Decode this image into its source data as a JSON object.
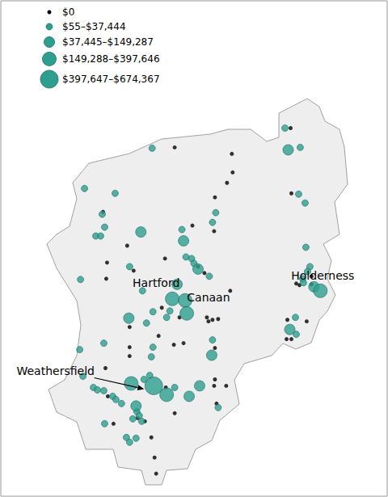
{
  "chart_data": {
    "type": "scatter",
    "marker": "circle",
    "xlim": [
      -73.4,
      -71.0
    ],
    "ylim": [
      43.0625,
      44.6
    ],
    "tick_labels": false,
    "grid": false,
    "legend": "upper left",
    "series": [
      {
        "name": "$0",
        "color": "#000000",
        "range": [
          0,
          0
        ],
        "x": [
          -71.6,
          -72.32,
          -71.965,
          -71.96,
          -71.995,
          -72.07,
          -72.075,
          -71.595,
          -72.765,
          -72.21,
          -72.615,
          -72.175,
          -72.135,
          -72.74,
          -72.575,
          -72.38,
          -72.745,
          -72.4,
          -72.29,
          -72.12,
          -72.085,
          -72.05,
          -72.11,
          -71.975,
          -71.47,
          -71.565,
          -71.545,
          -71.47,
          -71.62,
          -71.625,
          -71.5,
          -72.6,
          -72.6,
          -72.42,
          -72.325,
          -72.265,
          -72.07,
          -72.75,
          -72.735,
          -72.375,
          -72.07,
          -72.075,
          -72.06,
          -72.0,
          -72.7,
          -72.465,
          -72.32,
          -72.445,
          -72.435,
          -72.505,
          -72.55,
          -72.6,
          -71.595
        ],
        "y": [
          44.205,
          44.145,
          44.125,
          44.0675,
          44.035,
          43.99,
          43.885,
          44.0025,
          43.945,
          43.9025,
          43.84,
          43.775,
          43.755,
          43.7875,
          43.7625,
          43.8,
          43.7375,
          43.6475,
          43.6175,
          43.6175,
          43.61,
          43.6125,
          43.605,
          43.7,
          43.745,
          43.7225,
          43.7175,
          43.72,
          43.61,
          43.55,
          43.605,
          43.525,
          43.4975,
          43.56,
          43.5325,
          43.5375,
          43.5225,
          43.46,
          43.3725,
          43.4,
          43.425,
          43.405,
          43.35,
          43.405,
          43.2875,
          43.245,
          43.32,
          43.1825,
          43.1325,
          43.295,
          43.305,
          43.5875,
          43.55
        ]
      },
      {
        "name": "$55–$37,444",
        "color": "#2e9e8f",
        "range": [
          55,
          37444
        ],
        "x": [
          -71.635,
          -71.54,
          -71.55,
          -71.51,
          -72.46,
          -72.065,
          -72.085,
          -72.88,
          -72.69,
          -72.77,
          -72.81,
          -72.78,
          -72.755,
          -72.275,
          -72.25,
          -72.215,
          -72.2,
          -72.105,
          -72.6,
          -72.905,
          -72.52,
          -72.495,
          -72.455,
          -72.37,
          -72.35,
          -71.505,
          -71.48,
          -71.495,
          -71.525,
          -71.52,
          -71.565,
          -71.57,
          -72.91,
          -72.76,
          -72.455,
          -72.465,
          -72.085,
          -72.89,
          -72.825,
          -72.8,
          -72.76,
          -72.705,
          -72.685,
          -72.51,
          -72.475,
          -72.32,
          -72.05,
          -72.555,
          -72.54,
          -72.58,
          -72.525,
          -72.65,
          -72.755,
          -72.62,
          -72.56,
          -72.6
        ],
        "y": [
          44.205,
          44.145,
          44.0,
          43.9725,
          44.1425,
          43.9425,
          43.9125,
          44.0175,
          44.0025,
          43.9375,
          43.87,
          43.87,
          43.8975,
          43.89,
          43.805,
          43.8,
          43.785,
          43.745,
          43.775,
          43.735,
          43.7,
          43.6,
          43.635,
          43.6175,
          43.6375,
          43.835,
          43.775,
          43.76,
          43.7375,
          43.725,
          43.565,
          43.6175,
          43.5175,
          43.5375,
          43.525,
          43.495,
          43.5475,
          43.435,
          43.4,
          43.3925,
          43.39,
          43.3725,
          43.3625,
          43.425,
          43.4375,
          43.4,
          43.3375,
          43.325,
          43.3125,
          43.3025,
          43.295,
          43.35,
          43.2875,
          43.245,
          43.2425,
          43.23
        ]
      },
      {
        "name": "$37,445–$149,287",
        "color": "#2e9e8f",
        "range": [
          37445,
          149287
        ],
        "x": [
          -71.615,
          -72.53,
          -72.265,
          -72.175,
          -72.605,
          -71.455,
          -71.605,
          -72.09,
          -72.23,
          -72.165,
          -72.56,
          -72.305
        ],
        "y": [
          44.1375,
          43.8825,
          43.855,
          43.7675,
          43.615,
          43.7125,
          43.58,
          43.5,
          43.3725,
          43.405,
          43.3425,
          43.72
        ]
      },
      {
        "name": "$149,288–$397,646",
        "color": "#2e9e8f",
        "range": [
          149288,
          397646
        ],
        "x": [
          -72.335,
          -72.255,
          -72.245,
          -72.59,
          -72.37,
          -71.415
        ],
        "y": [
          43.675,
          43.67,
          43.63,
          43.4125,
          43.3775,
          43.7
        ]
      },
      {
        "name": "$397,647–$674,367",
        "color": "#2e9e8f",
        "range": [
          397647,
          674367
        ],
        "x": [
          -72.45
        ],
        "y": [
          43.405
        ]
      }
    ],
    "annotations": [
      {
        "text": "Hartford",
        "x": -72.435,
        "y": 43.725
      },
      {
        "text": "Canaan",
        "x": -72.11,
        "y": 43.68
      },
      {
        "text": "Holderness",
        "x": -71.4,
        "y": 43.7475
      },
      {
        "text": "Weathersfield",
        "x": -73.06,
        "y": 43.4525,
        "arrow": [
          -72.51,
          43.395
        ]
      }
    ]
  }
}
